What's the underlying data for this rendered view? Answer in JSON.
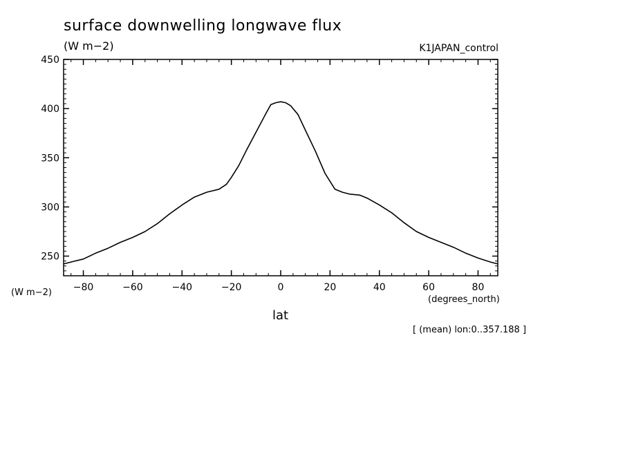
{
  "header": {
    "title": "surface downwelling longwave flux",
    "units": "(W m−2)",
    "run_name": "K1JAPAN_control",
    "y_units_bottom": "(W m−2)",
    "x_units": "(degrees_north)",
    "x_name": "lat",
    "footnote": "[ (mean) lon:0..357.188 ]"
  },
  "chart_data": {
    "type": "line",
    "title": "surface downwelling longwave flux",
    "xlabel": "lat",
    "ylabel": "(W m−2)",
    "xlim": [
      -88,
      88
    ],
    "ylim": [
      230,
      450
    ],
    "x_ticks": [
      -80,
      -60,
      -40,
      -20,
      0,
      20,
      40,
      60,
      80
    ],
    "x_tick_labels": [
      "−80",
      "−60",
      "−40",
      "−20",
      "0",
      "20",
      "40",
      "60",
      "80"
    ],
    "y_ticks": [
      250,
      300,
      350,
      400,
      450
    ],
    "y_tick_labels": [
      "250",
      "300",
      "350",
      "400",
      "450"
    ],
    "grid": false,
    "line_color": "#000000",
    "series": [
      {
        "x": [
          -88,
          -85,
          -80,
          -75,
          -70,
          -65,
          -60,
          -55,
          -50,
          -45,
          -40,
          -35,
          -30,
          -25,
          -22,
          -20,
          -17,
          -14,
          -10,
          -6,
          -4,
          -2,
          0,
          2,
          4,
          7,
          10,
          14,
          18,
          22,
          25,
          28,
          32,
          35,
          40,
          45,
          50,
          55,
          60,
          65,
          70,
          75,
          80,
          85,
          88
        ],
        "y": [
          242,
          244,
          247,
          253,
          258,
          264,
          269,
          275,
          283,
          293,
          302,
          310,
          315,
          318,
          323,
          330,
          342,
          357,
          376,
          395,
          404,
          406,
          407,
          406,
          403,
          394,
          378,
          357,
          334,
          318,
          315,
          313,
          312,
          309,
          302,
          294,
          284,
          275,
          269,
          264,
          259,
          253,
          248,
          244,
          242
        ]
      }
    ]
  }
}
